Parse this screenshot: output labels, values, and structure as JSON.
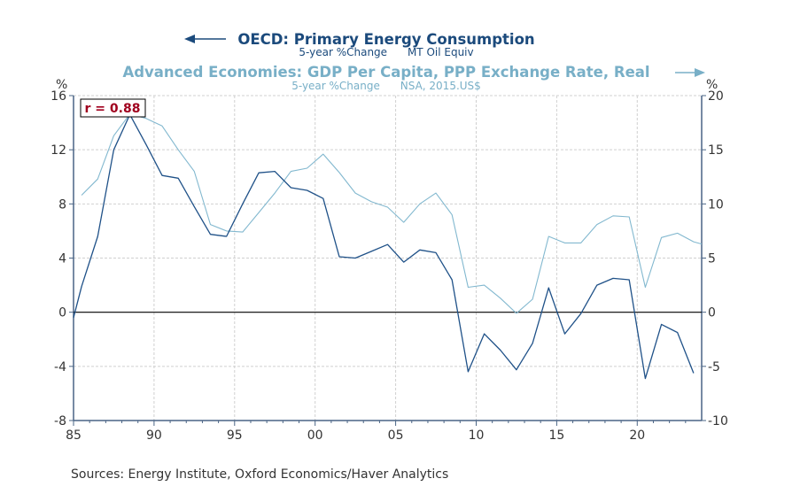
{
  "colors": {
    "oecd": "#1f5188",
    "gdp": "#82b8cf",
    "title_oecd": "#1b4a7c",
    "title_gdp": "#78afc7",
    "annotation": "#a0001e",
    "axis": "#4a6485"
  },
  "chart_data": {
    "type": "line",
    "titles": [
      {
        "title": "OECD: Primary Energy Consumption",
        "subtitle": "5-year %Change      MT Oil Equiv",
        "axis": "left"
      },
      {
        "title": "Advanced Economies: GDP Per Capita, PPP Exchange Rate, Real",
        "subtitle": "5-year %Change      NSA, 2015.US$",
        "axis": "right"
      }
    ],
    "left_axis": {
      "label": "%",
      "ylim": [
        -8,
        16
      ],
      "ticks": [
        16,
        12,
        8,
        4,
        0,
        -4,
        -8
      ]
    },
    "right_axis": {
      "label": "%",
      "ylim": [
        -10,
        20
      ],
      "ticks": [
        20,
        15,
        10,
        5,
        0,
        -5,
        -10
      ]
    },
    "x_axis": {
      "xlim": [
        1985,
        2024
      ],
      "ticks": [
        1985,
        1990,
        1995,
        2000,
        2005,
        2010,
        2015,
        2020
      ],
      "tick_labels": [
        "85",
        "90",
        "95",
        "00",
        "05",
        "10",
        "15",
        "20"
      ]
    },
    "grid": true,
    "annotation": "r = 0.88",
    "series": [
      {
        "name": "OECD: Primary Energy Consumption",
        "axis": "left",
        "x": [
          1985.0,
          1985.5,
          1986.5,
          1987.5,
          1988.5,
          1989.5,
          1990.5,
          1991.5,
          1992.5,
          1993.5,
          1994.5,
          1995.5,
          1996.5,
          1997.5,
          1998.5,
          1999.5,
          2000.5,
          2001.5,
          2002.5,
          2003.5,
          2004.5,
          2005.5,
          2006.5,
          2007.5,
          2008.5,
          2009.5,
          2010.5,
          2011.5,
          2012.5,
          2013.5,
          2014.5,
          2015.5,
          2016.5,
          2017.5,
          2018.5,
          2019.5,
          2020.5,
          2021.5,
          2022.5,
          2023.5
        ],
        "values": [
          -0.4,
          1.9,
          5.6,
          12.0,
          14.6,
          12.4,
          10.1,
          9.9,
          7.8,
          5.75,
          5.6,
          8.0,
          10.3,
          10.4,
          9.2,
          9.0,
          8.4,
          4.1,
          4.0,
          4.5,
          5.0,
          3.7,
          4.6,
          4.4,
          2.4,
          -4.4,
          -1.6,
          -2.8,
          -4.25,
          -2.3,
          1.8,
          -1.6,
          -0.1,
          2.0,
          2.5,
          2.4,
          -4.9,
          -0.9,
          -1.5,
          -4.5
        ]
      },
      {
        "name": "Advanced Economies: GDP Per Capita, PPP Exchange Rate, Real",
        "axis": "right",
        "x": [
          1985.5,
          1986.5,
          1987.5,
          1988.5,
          1989.5,
          1990.5,
          1991.5,
          1992.5,
          1993.5,
          1994.5,
          1995.5,
          1996.5,
          1997.5,
          1998.5,
          1999.5,
          2000.5,
          2001.5,
          2002.5,
          2003.5,
          2004.5,
          2005.5,
          2006.5,
          2007.5,
          2008.5,
          2009.5,
          2010.5,
          2011.5,
          2012.5,
          2013.5,
          2014.5,
          2015.5,
          2016.5,
          2017.5,
          2018.5,
          2019.5,
          2020.5,
          2021.5,
          2022.5,
          2023.5,
          2024.0
        ],
        "values": [
          10.8,
          12.3,
          16.3,
          18.3,
          17.9,
          17.2,
          15.0,
          13.0,
          8.1,
          7.5,
          7.4,
          9.2,
          11.0,
          13.0,
          13.3,
          14.6,
          12.9,
          11.0,
          10.2,
          9.7,
          8.3,
          10.0,
          11.0,
          9.0,
          2.3,
          2.5,
          1.3,
          -0.1,
          1.2,
          7.0,
          6.4,
          6.4,
          8.1,
          8.9,
          8.8,
          2.3,
          6.9,
          7.3,
          6.5,
          6.3
        ]
      }
    ],
    "source": "Sources:  Energy Institute, Oxford Economics/Haver Analytics"
  }
}
